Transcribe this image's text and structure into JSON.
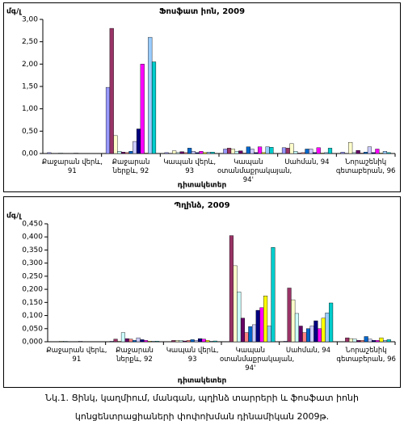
{
  "chart_data": [
    {
      "type": "bar",
      "title": "Ֆոսֆատ իոն, 2009",
      "y_label": "մգ/լ",
      "x_label": "դիտակետեր",
      "categories": [
        "Քաջարան վերև, 91",
        "Քաջարան ներքև, 92",
        "Կապան վերև, 93",
        "Կապան օտանմաքրակայան, 94'",
        "Սահման, 94",
        "Նորաշենիկ գետաբերան, 96"
      ],
      "ylim": [
        0,
        3
      ],
      "yticks": [
        {
          "value": 0,
          "label": "0,00"
        },
        {
          "value": 0.5,
          "label": "0,50"
        },
        {
          "value": 1,
          "label": "1,00"
        },
        {
          "value": 1.5,
          "label": "1,50"
        },
        {
          "value": 2,
          "label": "2,00"
        },
        {
          "value": 2.5,
          "label": "2,50"
        },
        {
          "value": 3,
          "label": "3,00"
        }
      ],
      "series": [
        {
          "color": "#9999FF",
          "values": [
            0.02,
            1.48,
            0.02,
            0.1,
            0.13,
            0.03
          ]
        },
        {
          "color": "#993366",
          "values": [
            0,
            2.8,
            0,
            0.12,
            0.12,
            0
          ]
        },
        {
          "color": "#FFFFCC",
          "values": [
            0,
            0.4,
            0.06,
            0.1,
            0.22,
            0.25
          ]
        },
        {
          "color": "#CCFFFF",
          "values": [
            0.01,
            0.05,
            0.02,
            0.05,
            0.05,
            0.02
          ]
        },
        {
          "color": "#660066",
          "values": [
            0,
            0.03,
            0.04,
            0.06,
            0.01,
            0.07
          ]
        },
        {
          "color": "#FF8080",
          "values": [
            0,
            0.02,
            0.02,
            0.01,
            0.02,
            0.01
          ]
        },
        {
          "color": "#0066CC",
          "values": [
            0,
            0.05,
            0.12,
            0.15,
            0.1,
            0.03
          ]
        },
        {
          "color": "#CCCCFF",
          "values": [
            0.01,
            0.27,
            0.05,
            0.1,
            0.1,
            0.15
          ]
        },
        {
          "color": "#000080",
          "values": [
            0,
            0.55,
            0.02,
            0.02,
            0.02,
            0.02
          ]
        },
        {
          "color": "#FF00FF",
          "values": [
            0,
            2,
            0.05,
            0.15,
            0.13,
            0.1
          ]
        },
        {
          "color": "#FFFF00",
          "values": [
            0,
            0.01,
            0.02,
            0.02,
            0.01,
            0.01
          ]
        },
        {
          "color": "#99CCFF",
          "values": [
            0,
            2.6,
            0.03,
            0.15,
            0.02,
            0.05
          ]
        },
        {
          "color": "#00CCCC",
          "values": [
            0,
            2.05,
            0.03,
            0.14,
            0.12,
            0.02
          ]
        }
      ]
    },
    {
      "type": "bar",
      "title": "Պղինձ, 2009",
      "y_label": "մգ/լ",
      "x_label": "դիտակետեր",
      "categories": [
        "Քաջարան վերև, 91",
        "Քաջարան ներքև, 92",
        "Կապան վերև, 93",
        "Կապան օտանմաքրակայան, 94'",
        "Սահման, 94",
        "Նորաշենիկ գետաբերան, 96"
      ],
      "ylim": [
        0,
        0.45
      ],
      "yticks": [
        {
          "value": 0,
          "label": "0,000"
        },
        {
          "value": 0.05,
          "label": "0,050"
        },
        {
          "value": 0.1,
          "label": "0,100"
        },
        {
          "value": 0.15,
          "label": "0,150"
        },
        {
          "value": 0.2,
          "label": "0,200"
        },
        {
          "value": 0.25,
          "label": "0,250"
        },
        {
          "value": 0.3,
          "label": "0,300"
        },
        {
          "value": 0.35,
          "label": "0,350"
        },
        {
          "value": 0.4,
          "label": "0,400"
        },
        {
          "value": 0.45,
          "label": "0,450"
        }
      ],
      "series": [
        {
          "color": "#9999FF",
          "values": [
            0,
            0.002,
            0,
            0,
            0.002,
            0
          ]
        },
        {
          "color": "#993366",
          "values": [
            0,
            0.01,
            0.005,
            0.405,
            0.205,
            0.015
          ]
        },
        {
          "color": "#FFFFCC",
          "values": [
            0.002,
            0.002,
            0.005,
            0.29,
            0.16,
            0.012
          ]
        },
        {
          "color": "#CCFFFF",
          "values": [
            0.002,
            0.035,
            0.005,
            0.19,
            0.108,
            0.01
          ]
        },
        {
          "color": "#660066",
          "values": [
            0,
            0.012,
            0.003,
            0.09,
            0.06,
            0.005
          ]
        },
        {
          "color": "#FF8080",
          "values": [
            0,
            0.01,
            0.005,
            0.035,
            0.035,
            0.005
          ]
        },
        {
          "color": "#0066CC",
          "values": [
            0,
            0.005,
            0.008,
            0.058,
            0.05,
            0.02
          ]
        },
        {
          "color": "#CCCCFF",
          "values": [
            0.002,
            0.015,
            0.005,
            0.065,
            0.06,
            0.01
          ]
        },
        {
          "color": "#000080",
          "values": [
            0,
            0.008,
            0.012,
            0.12,
            0.08,
            0.005
          ]
        },
        {
          "color": "#FF00FF",
          "values": [
            0,
            0.005,
            0.01,
            0.13,
            0.05,
            0.005
          ]
        },
        {
          "color": "#FFFF00",
          "values": [
            0,
            0.002,
            0.005,
            0.175,
            0.09,
            0.015
          ]
        },
        {
          "color": "#99CCFF",
          "values": [
            0,
            0.002,
            0.002,
            0.06,
            0.11,
            0.005
          ]
        },
        {
          "color": "#00CCCC",
          "values": [
            0,
            0.002,
            0.003,
            0.36,
            0.148,
            0.008
          ]
        }
      ]
    }
  ],
  "caption": [
    "Նկ.1. Ցինկ, կաղմիում, մանգան, պղինձ տարրերի և ֆոսֆատ իոնի",
    "կոնցենտրացիաների փոփոխման դինամիկան 2009թ."
  ]
}
